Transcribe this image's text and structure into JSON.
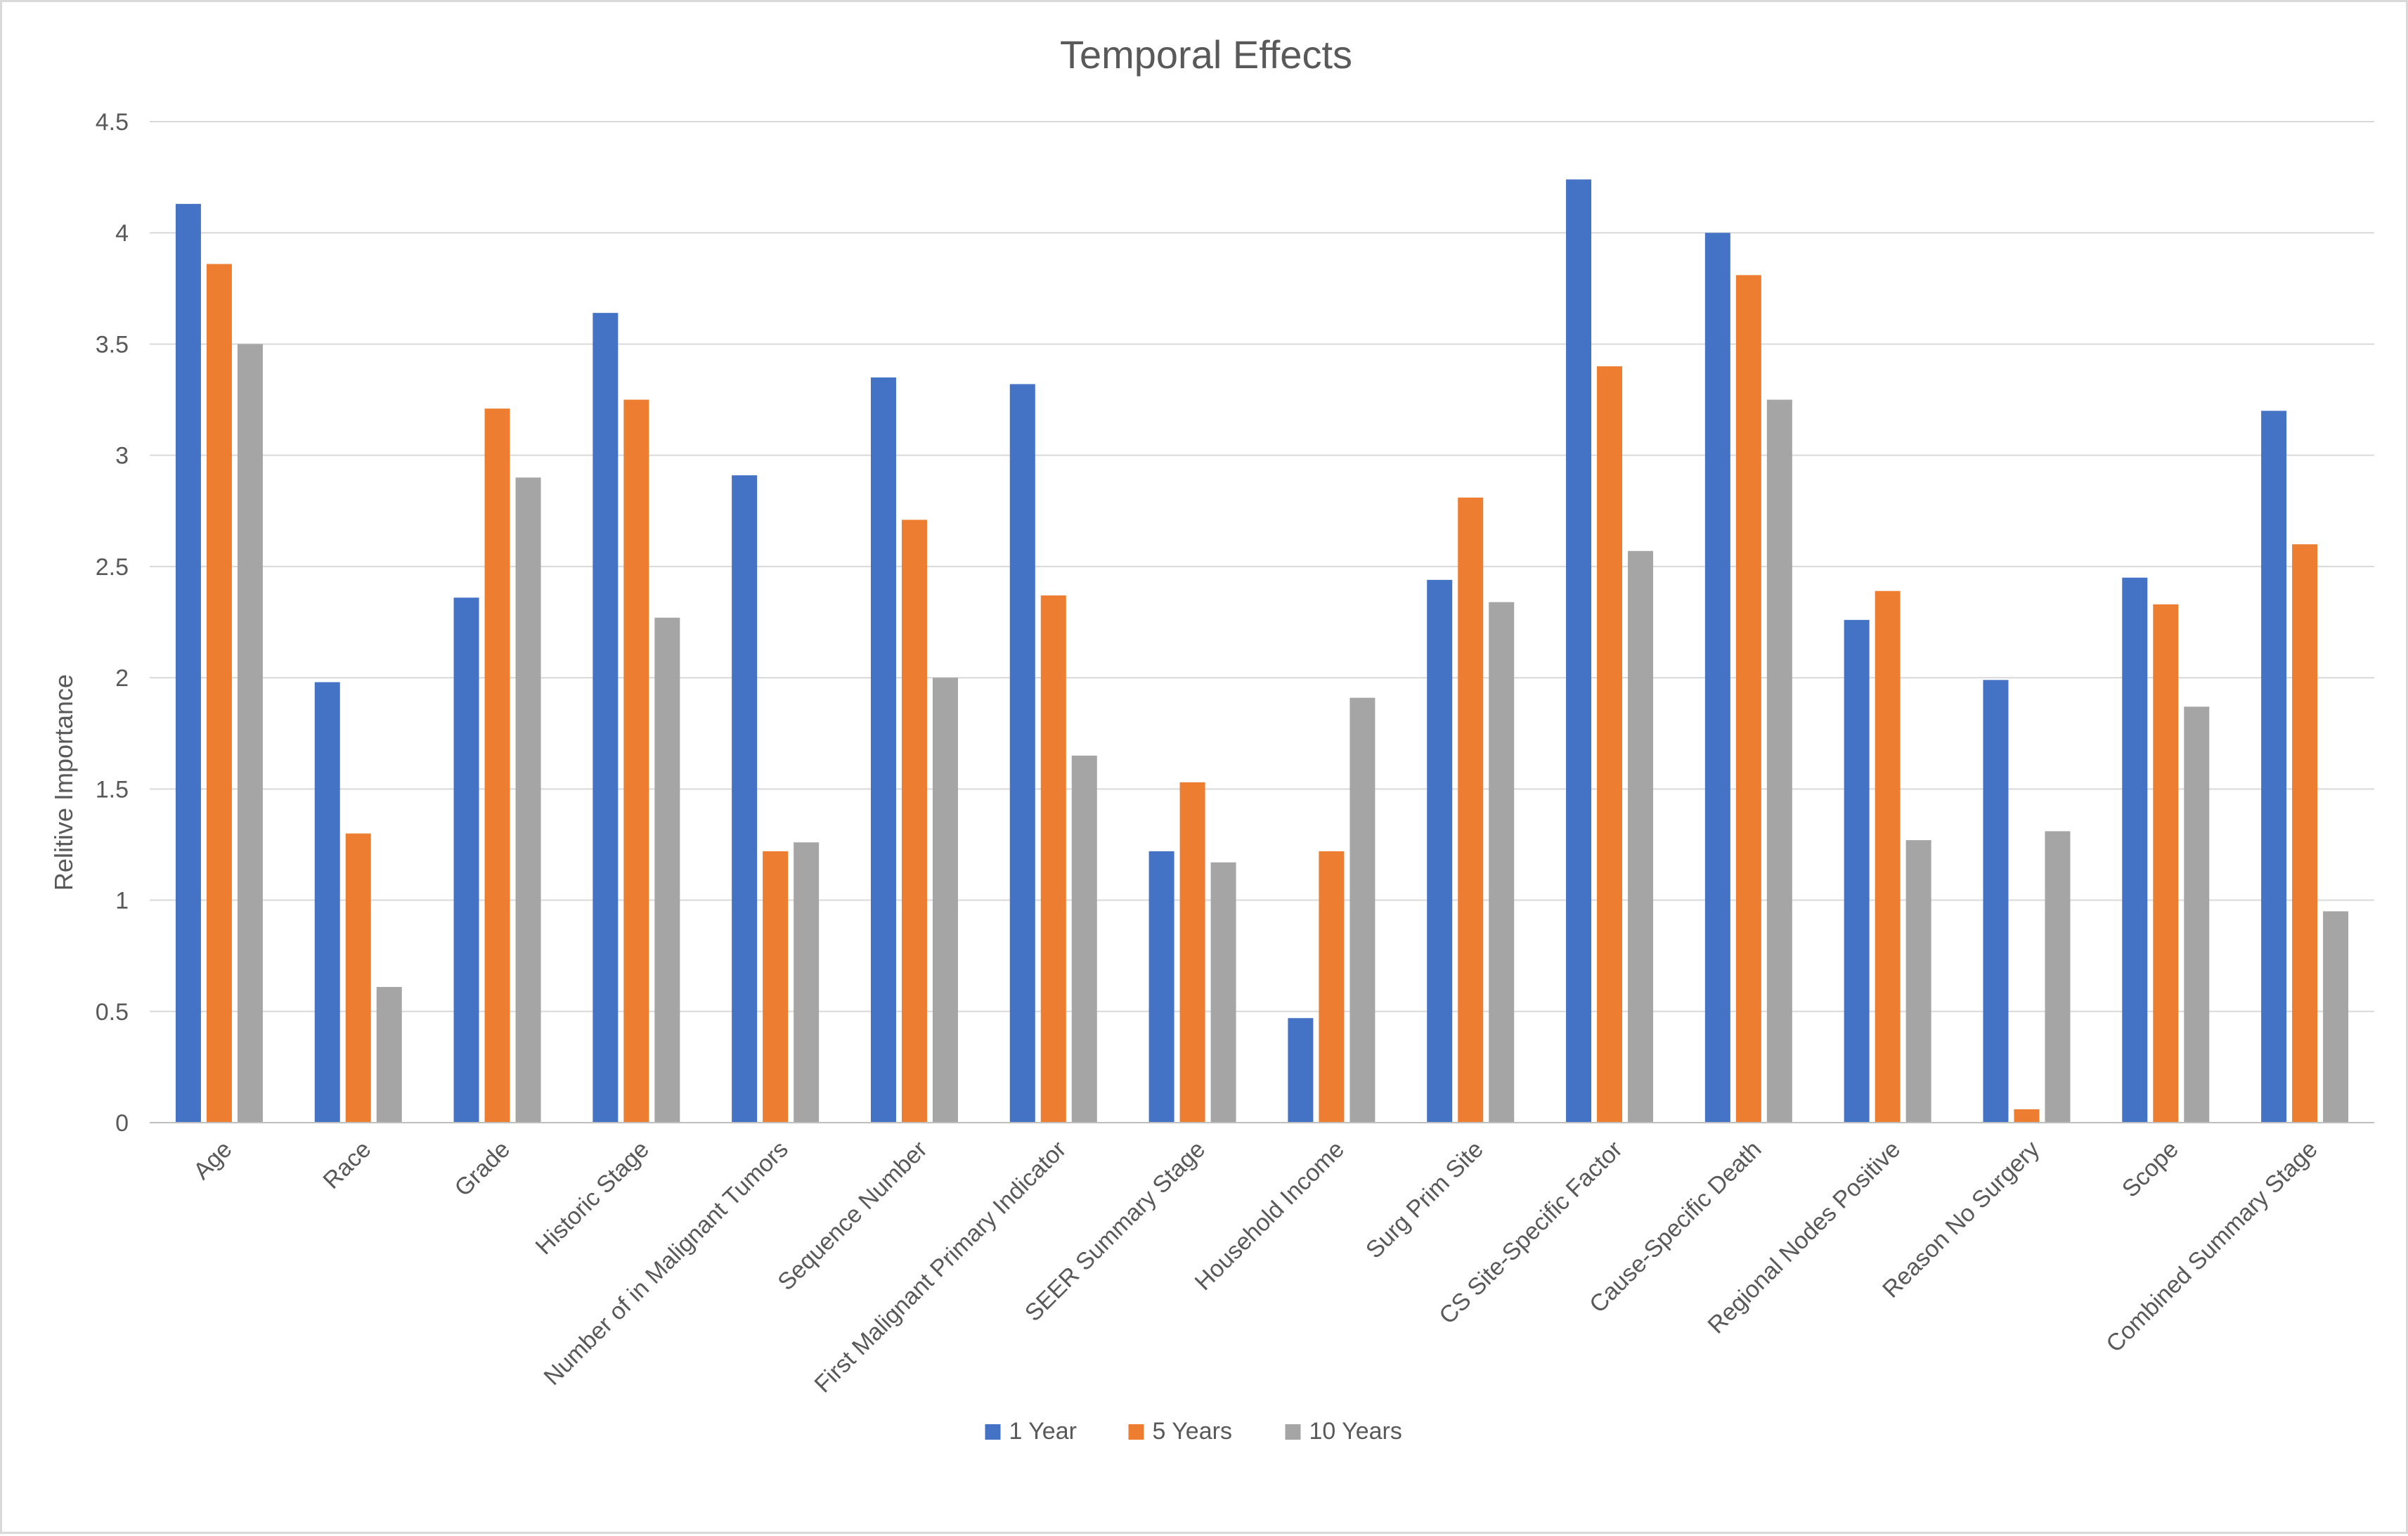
{
  "chart_data": {
    "type": "bar",
    "title": "Temporal Effects",
    "xlabel": "",
    "ylabel": "Relitive Importance",
    "ylim": [
      0,
      4.5
    ],
    "yticks": [
      "0",
      "0.5",
      "1",
      "1.5",
      "2",
      "2.5",
      "3",
      "3.5",
      "4",
      "4.5"
    ],
    "grid": true,
    "legend_position": "bottom",
    "categories": [
      "Age",
      "Race",
      "Grade",
      "Historic Stage",
      "Number of in Malignant Tumors",
      "Sequence Number",
      "First Malignant Primary Indicator",
      "SEER Summary Stage",
      "Household Income",
      "Surg Prim Site",
      "CS Site-Specific Factor",
      "Cause-Specific Death",
      "Regional Nodes Positive",
      "Reason No Surgery",
      "Scope",
      "Combined Summary Stage"
    ],
    "series": [
      {
        "name": "1 Year",
        "color": "#4472C4",
        "values": [
          4.13,
          1.98,
          2.36,
          3.64,
          2.91,
          3.35,
          3.32,
          1.22,
          0.47,
          2.44,
          4.24,
          4.0,
          2.26,
          1.99,
          2.45,
          3.2
        ]
      },
      {
        "name": "5 Years",
        "color": "#ED7D31",
        "values": [
          3.86,
          1.3,
          3.21,
          3.25,
          1.22,
          2.71,
          2.37,
          1.53,
          1.22,
          2.81,
          3.4,
          3.81,
          2.39,
          0.06,
          2.33,
          2.6
        ]
      },
      {
        "name": "10 Years",
        "color": "#A5A5A5",
        "values": [
          3.5,
          0.61,
          2.9,
          2.27,
          1.26,
          2.0,
          1.65,
          1.17,
          1.91,
          2.34,
          2.57,
          3.25,
          1.27,
          1.31,
          1.87,
          0.95
        ]
      }
    ],
    "colors": {
      "gridline": "#d9d9d9",
      "axis_line": "#bfbfbf",
      "text": "#595959"
    }
  }
}
